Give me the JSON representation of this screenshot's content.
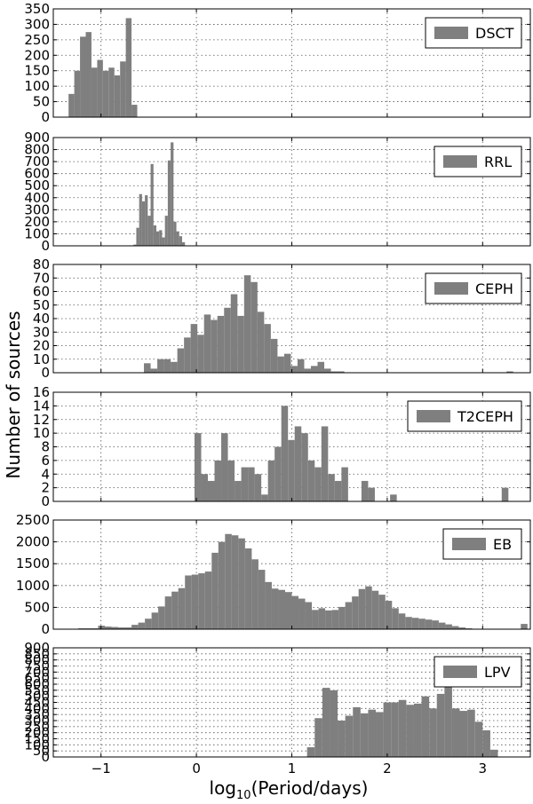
{
  "figure": {
    "xlabel": "log10(Period/days)",
    "ylabel": "Number of sources",
    "bar_color": "#7f7f7f",
    "grid": true
  },
  "chart_data": [
    {
      "type": "bar",
      "legend": "DSCT",
      "legend_position": "top-right",
      "xlim": [
        -1.5,
        3.5
      ],
      "ylim": [
        0,
        350
      ],
      "yticks": [
        0,
        50,
        100,
        150,
        200,
        250,
        300,
        350
      ],
      "xticks": [
        -1,
        0,
        1,
        2,
        3
      ],
      "show_xticklabels": false,
      "bin_width": 0.06,
      "bins": [
        {
          "x": -1.34,
          "y": 75
        },
        {
          "x": -1.28,
          "y": 150
        },
        {
          "x": -1.22,
          "y": 260
        },
        {
          "x": -1.16,
          "y": 275
        },
        {
          "x": -1.1,
          "y": 160
        },
        {
          "x": -1.04,
          "y": 185
        },
        {
          "x": -0.98,
          "y": 150
        },
        {
          "x": -0.92,
          "y": 160
        },
        {
          "x": -0.86,
          "y": 135
        },
        {
          "x": -0.8,
          "y": 180
        },
        {
          "x": -0.74,
          "y": 320
        },
        {
          "x": -0.68,
          "y": 40
        }
      ]
    },
    {
      "type": "bar",
      "legend": "RRL",
      "legend_position": "top-right",
      "xlim": [
        -1.5,
        3.5
      ],
      "ylim": [
        0,
        900
      ],
      "yticks": [
        0,
        100,
        200,
        300,
        400,
        500,
        600,
        700,
        800,
        900
      ],
      "xticks": [
        -1,
        0,
        1,
        2,
        3
      ],
      "show_xticklabels": false,
      "bin_width": 0.03,
      "bins": [
        {
          "x": -0.66,
          "y": 10
        },
        {
          "x": -0.63,
          "y": 150
        },
        {
          "x": -0.6,
          "y": 430
        },
        {
          "x": -0.57,
          "y": 370
        },
        {
          "x": -0.54,
          "y": 420
        },
        {
          "x": -0.51,
          "y": 250
        },
        {
          "x": -0.48,
          "y": 680
        },
        {
          "x": -0.45,
          "y": 170
        },
        {
          "x": -0.42,
          "y": 120
        },
        {
          "x": -0.39,
          "y": 130
        },
        {
          "x": -0.36,
          "y": 70
        },
        {
          "x": -0.33,
          "y": 250
        },
        {
          "x": -0.3,
          "y": 710
        },
        {
          "x": -0.27,
          "y": 860
        },
        {
          "x": -0.24,
          "y": 200
        },
        {
          "x": -0.21,
          "y": 120
        },
        {
          "x": -0.18,
          "y": 80
        },
        {
          "x": -0.15,
          "y": 30
        }
      ]
    },
    {
      "type": "bar",
      "legend": "CEPH",
      "legend_position": "top-right",
      "xlim": [
        -1.5,
        3.5
      ],
      "ylim": [
        0,
        80
      ],
      "yticks": [
        0,
        10,
        20,
        30,
        40,
        50,
        60,
        70,
        80
      ],
      "xticks": [
        -1,
        0,
        1,
        2,
        3
      ],
      "show_xticklabels": false,
      "bin_width": 0.07,
      "bins": [
        {
          "x": -0.55,
          "y": 7
        },
        {
          "x": -0.48,
          "y": 3
        },
        {
          "x": -0.41,
          "y": 10
        },
        {
          "x": -0.34,
          "y": 10
        },
        {
          "x": -0.27,
          "y": 8
        },
        {
          "x": -0.2,
          "y": 18
        },
        {
          "x": -0.13,
          "y": 26
        },
        {
          "x": -0.06,
          "y": 36
        },
        {
          "x": 0.01,
          "y": 28
        },
        {
          "x": 0.08,
          "y": 43
        },
        {
          "x": 0.15,
          "y": 39
        },
        {
          "x": 0.22,
          "y": 42
        },
        {
          "x": 0.29,
          "y": 48
        },
        {
          "x": 0.36,
          "y": 58
        },
        {
          "x": 0.43,
          "y": 42
        },
        {
          "x": 0.5,
          "y": 72
        },
        {
          "x": 0.57,
          "y": 67
        },
        {
          "x": 0.64,
          "y": 45
        },
        {
          "x": 0.71,
          "y": 36
        },
        {
          "x": 0.78,
          "y": 25
        },
        {
          "x": 0.85,
          "y": 12
        },
        {
          "x": 0.92,
          "y": 14
        },
        {
          "x": 0.99,
          "y": 5
        },
        {
          "x": 1.06,
          "y": 10
        },
        {
          "x": 1.13,
          "y": 3
        },
        {
          "x": 1.2,
          "y": 5
        },
        {
          "x": 1.27,
          "y": 8
        },
        {
          "x": 1.34,
          "y": 3
        },
        {
          "x": 1.41,
          "y": 1
        },
        {
          "x": 1.48,
          "y": 1
        },
        {
          "x": 3.25,
          "y": 1
        }
      ]
    },
    {
      "type": "bar",
      "legend": "T2CEPH",
      "legend_position": "top-right",
      "xlim": [
        -1.5,
        3.5
      ],
      "ylim": [
        0,
        16
      ],
      "yticks": [
        0,
        2,
        4,
        6,
        8,
        10,
        12,
        14,
        16
      ],
      "xticks": [
        -1,
        0,
        1,
        2,
        3
      ],
      "show_xticklabels": false,
      "bin_width": 0.07,
      "bins": [
        {
          "x": -0.02,
          "y": 10
        },
        {
          "x": 0.05,
          "y": 4
        },
        {
          "x": 0.12,
          "y": 3
        },
        {
          "x": 0.19,
          "y": 6
        },
        {
          "x": 0.26,
          "y": 10
        },
        {
          "x": 0.33,
          "y": 6
        },
        {
          "x": 0.4,
          "y": 3
        },
        {
          "x": 0.47,
          "y": 5
        },
        {
          "x": 0.54,
          "y": 5
        },
        {
          "x": 0.61,
          "y": 4
        },
        {
          "x": 0.68,
          "y": 1
        },
        {
          "x": 0.75,
          "y": 6
        },
        {
          "x": 0.82,
          "y": 8
        },
        {
          "x": 0.89,
          "y": 14
        },
        {
          "x": 0.96,
          "y": 9
        },
        {
          "x": 1.03,
          "y": 11
        },
        {
          "x": 1.1,
          "y": 10
        },
        {
          "x": 1.17,
          "y": 6
        },
        {
          "x": 1.24,
          "y": 5
        },
        {
          "x": 1.31,
          "y": 11
        },
        {
          "x": 1.38,
          "y": 4
        },
        {
          "x": 1.45,
          "y": 3
        },
        {
          "x": 1.52,
          "y": 5
        },
        {
          "x": 1.59,
          "y": 0
        },
        {
          "x": 1.66,
          "y": 0
        },
        {
          "x": 1.73,
          "y": 3
        },
        {
          "x": 1.8,
          "y": 2
        },
        {
          "x": 2.03,
          "y": 1
        },
        {
          "x": 3.2,
          "y": 2
        }
      ]
    },
    {
      "type": "bar",
      "legend": "EB",
      "legend_position": "top-right",
      "xlim": [
        -1.5,
        3.5
      ],
      "ylim": [
        0,
        2500
      ],
      "yticks": [
        0,
        500,
        1000,
        1500,
        2000,
        2500
      ],
      "xticks": [
        -1,
        0,
        1,
        2,
        3
      ],
      "show_xticklabels": false,
      "bin_width": 0.07,
      "bins": [
        {
          "x": -1.24,
          "y": 20
        },
        {
          "x": -1.17,
          "y": 20
        },
        {
          "x": -1.1,
          "y": 20
        },
        {
          "x": -1.03,
          "y": 80
        },
        {
          "x": -0.96,
          "y": 60
        },
        {
          "x": -0.89,
          "y": 50
        },
        {
          "x": -0.82,
          "y": 40
        },
        {
          "x": -0.75,
          "y": 40
        },
        {
          "x": -0.68,
          "y": 100
        },
        {
          "x": -0.61,
          "y": 150
        },
        {
          "x": -0.54,
          "y": 240
        },
        {
          "x": -0.47,
          "y": 380
        },
        {
          "x": -0.4,
          "y": 520
        },
        {
          "x": -0.33,
          "y": 750
        },
        {
          "x": -0.26,
          "y": 860
        },
        {
          "x": -0.19,
          "y": 940
        },
        {
          "x": -0.12,
          "y": 1230
        },
        {
          "x": -0.05,
          "y": 1250
        },
        {
          "x": 0.02,
          "y": 1280
        },
        {
          "x": 0.09,
          "y": 1320
        },
        {
          "x": 0.16,
          "y": 1750
        },
        {
          "x": 0.23,
          "y": 2000
        },
        {
          "x": 0.3,
          "y": 2180
        },
        {
          "x": 0.37,
          "y": 2150
        },
        {
          "x": 0.44,
          "y": 2080
        },
        {
          "x": 0.51,
          "y": 1850
        },
        {
          "x": 0.58,
          "y": 1600
        },
        {
          "x": 0.65,
          "y": 1360
        },
        {
          "x": 0.72,
          "y": 1080
        },
        {
          "x": 0.79,
          "y": 930
        },
        {
          "x": 0.86,
          "y": 900
        },
        {
          "x": 0.93,
          "y": 850
        },
        {
          "x": 1.0,
          "y": 760
        },
        {
          "x": 1.07,
          "y": 700
        },
        {
          "x": 1.14,
          "y": 620
        },
        {
          "x": 1.21,
          "y": 440
        },
        {
          "x": 1.28,
          "y": 480
        },
        {
          "x": 1.35,
          "y": 430
        },
        {
          "x": 1.42,
          "y": 440
        },
        {
          "x": 1.49,
          "y": 510
        },
        {
          "x": 1.56,
          "y": 620
        },
        {
          "x": 1.63,
          "y": 750
        },
        {
          "x": 1.7,
          "y": 920
        },
        {
          "x": 1.77,
          "y": 980
        },
        {
          "x": 1.84,
          "y": 880
        },
        {
          "x": 1.91,
          "y": 790
        },
        {
          "x": 1.98,
          "y": 650
        },
        {
          "x": 2.05,
          "y": 480
        },
        {
          "x": 2.12,
          "y": 360
        },
        {
          "x": 2.19,
          "y": 280
        },
        {
          "x": 2.26,
          "y": 260
        },
        {
          "x": 2.33,
          "y": 240
        },
        {
          "x": 2.4,
          "y": 220
        },
        {
          "x": 2.47,
          "y": 200
        },
        {
          "x": 2.54,
          "y": 150
        },
        {
          "x": 2.61,
          "y": 110
        },
        {
          "x": 2.68,
          "y": 70
        },
        {
          "x": 2.75,
          "y": 40
        },
        {
          "x": 2.82,
          "y": 20
        },
        {
          "x": 3.4,
          "y": 120
        }
      ]
    },
    {
      "type": "bar",
      "legend": "LPV",
      "legend_position": "top-right",
      "xlim": [
        -1.5,
        3.5
      ],
      "ylim": [
        0,
        900
      ],
      "yticks": [
        0,
        50,
        100,
        150,
        200,
        250,
        300,
        350,
        400,
        450,
        500,
        550,
        600,
        650,
        700,
        750,
        800,
        850,
        900
      ],
      "xticks": [
        -1,
        0,
        1,
        2,
        3
      ],
      "show_xticklabels": true,
      "bin_width": 0.08,
      "bins": [
        {
          "x": 1.16,
          "y": 80
        },
        {
          "x": 1.24,
          "y": 320
        },
        {
          "x": 1.32,
          "y": 570
        },
        {
          "x": 1.4,
          "y": 550
        },
        {
          "x": 1.48,
          "y": 300
        },
        {
          "x": 1.56,
          "y": 340
        },
        {
          "x": 1.64,
          "y": 410
        },
        {
          "x": 1.72,
          "y": 360
        },
        {
          "x": 1.8,
          "y": 390
        },
        {
          "x": 1.88,
          "y": 370
        },
        {
          "x": 1.96,
          "y": 450
        },
        {
          "x": 2.04,
          "y": 450
        },
        {
          "x": 2.12,
          "y": 470
        },
        {
          "x": 2.2,
          "y": 430
        },
        {
          "x": 2.28,
          "y": 440
        },
        {
          "x": 2.36,
          "y": 500
        },
        {
          "x": 2.44,
          "y": 400
        },
        {
          "x": 2.52,
          "y": 520
        },
        {
          "x": 2.6,
          "y": 600
        },
        {
          "x": 2.68,
          "y": 400
        },
        {
          "x": 2.76,
          "y": 380
        },
        {
          "x": 2.84,
          "y": 390
        },
        {
          "x": 2.92,
          "y": 290
        },
        {
          "x": 3.0,
          "y": 220
        },
        {
          "x": 3.08,
          "y": 60
        }
      ]
    }
  ]
}
